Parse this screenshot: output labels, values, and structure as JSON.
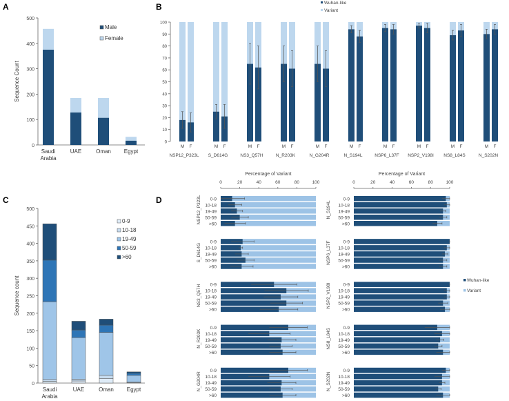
{
  "colors": {
    "dark": "#1f4e79",
    "light": "#bdd7ee",
    "variant_d": "#9dc3e6",
    "axis": "#666666",
    "err": "#555555"
  },
  "chart_data": [
    {
      "panel": "A",
      "type": "bar",
      "stacked": true,
      "ylabel": "Sequence Count",
      "ylim": [
        0,
        500
      ],
      "yticks": [
        "0",
        "100",
        "200",
        "300",
        "400",
        "500"
      ],
      "categories": [
        "Saudi Arabia",
        "UAE",
        "Oman",
        "Egypt"
      ],
      "category_lines": [
        [
          "Saudi",
          "Arabia"
        ],
        [
          "UAE"
        ],
        [
          "Oman"
        ],
        [
          "Egypt"
        ]
      ],
      "series": [
        {
          "name": "Male",
          "color": "#1f4e79",
          "values": [
            375,
            128,
            107,
            17
          ]
        },
        {
          "name": "Female",
          "color": "#bdd7ee",
          "values": [
            82,
            57,
            78,
            15
          ]
        }
      ],
      "legend": "top-right"
    },
    {
      "panel": "B",
      "type": "bar",
      "stacked": true,
      "unit": "percent",
      "ylim": [
        0,
        100
      ],
      "yticks": [
        "0",
        "10",
        "20",
        "30",
        "40",
        "50",
        "60",
        "70",
        "80",
        "90",
        "100"
      ],
      "sex_labels": [
        "M",
        "F"
      ],
      "legend_entries": [
        {
          "name": "Wuhan-like",
          "color": "#1f4e79"
        },
        {
          "name": "Variant",
          "color": "#bdd7ee"
        }
      ],
      "legend": "top-center",
      "groups": [
        {
          "name": "NSP12_P323L",
          "wuhan": [
            18,
            16
          ],
          "err": [
            7,
            8
          ]
        },
        {
          "name": "S_D614G",
          "wuhan": [
            25,
            21
          ],
          "err": [
            6,
            10
          ]
        },
        {
          "name": "NS3_Q57H",
          "wuhan": [
            65,
            62
          ],
          "err": [
            17,
            18
          ]
        },
        {
          "name": "N_R203K",
          "wuhan": [
            65,
            61
          ],
          "err": [
            15,
            15
          ]
        },
        {
          "name": "N_G204R",
          "wuhan": [
            65,
            61
          ],
          "err": [
            15,
            15
          ]
        },
        {
          "name": "N_S194L",
          "wuhan": [
            94,
            88
          ],
          "err": [
            3,
            5
          ]
        },
        {
          "name": "NSP6_L37F",
          "wuhan": [
            95,
            94
          ],
          "err": [
            3,
            4
          ]
        },
        {
          "name": "NSP2_V198I",
          "wuhan": [
            97,
            95
          ],
          "err": [
            2,
            4
          ]
        },
        {
          "name": "NS8_L84S",
          "wuhan": [
            89,
            93
          ],
          "err": [
            4,
            5
          ]
        },
        {
          "name": "N_S202N",
          "wuhan": [
            90,
            94
          ],
          "err": [
            4,
            4
          ]
        }
      ]
    },
    {
      "panel": "C",
      "type": "bar",
      "stacked": true,
      "ylabel": "Sequence count",
      "ylim": [
        0,
        500
      ],
      "yticks": [
        "0",
        "50",
        "100",
        "150",
        "200",
        "250",
        "300",
        "350",
        "400",
        "450",
        "500"
      ],
      "categories": [
        "Saudi Arabia",
        "UAE",
        "Oman",
        "Egypt"
      ],
      "category_lines": [
        [
          "Saudi",
          "Arabia"
        ],
        [
          "UAE"
        ],
        [
          "Oman"
        ],
        [
          "Egypt"
        ]
      ],
      "series": [
        {
          "name": "0-9",
          "color": "#deebf7",
          "values": [
            5,
            6,
            13,
            1
          ]
        },
        {
          "name": "10-18",
          "color": "#c6dbef",
          "values": [
            5,
            5,
            9,
            2
          ]
        },
        {
          "name": "19-49",
          "color": "#9fc5e8",
          "values": [
            223,
            119,
            123,
            19
          ]
        },
        {
          "name": "50-59",
          "color": "#2e75b6",
          "values": [
            119,
            22,
            21,
            6
          ]
        },
        {
          "name": ">60",
          "color": "#1f4e79",
          "values": [
            104,
            25,
            17,
            4
          ]
        }
      ],
      "legend": "top-right"
    },
    {
      "panel": "D",
      "type": "bar",
      "orientation": "horizontal",
      "stacked": true,
      "xlabel": "Percentage of Variant",
      "xlim": [
        0,
        100
      ],
      "xticks": [
        "0",
        "20",
        "40",
        "60",
        "80",
        "100"
      ],
      "age_groups": [
        "0-9",
        "10-18",
        "19-49",
        "50-59",
        ">60"
      ],
      "legend_entries": [
        {
          "name": "Wuhan-like",
          "color": "#1f4e79"
        },
        {
          "name": "Variant",
          "color": "#9dc3e6"
        }
      ],
      "legend": "right",
      "columns": [
        [
          {
            "name": "NSP12_P323L",
            "wuhan": [
              12,
              15,
              17,
              20,
              15
            ],
            "err": [
              13,
              7,
              6,
              9,
              11
            ]
          },
          {
            "name": "S_D614G",
            "wuhan": [
              23,
              21,
              22,
              26,
              22
            ],
            "err": [
              12,
              2,
              7,
              9,
              12
            ]
          },
          {
            "name": "NS3_Q57H",
            "wuhan": [
              56,
              69,
              63,
              69,
              61
            ],
            "err": [
              24,
              23,
              18,
              17,
              20
            ]
          },
          {
            "name": "N_R203K",
            "wuhan": [
              71,
              51,
              64,
              63,
              65
            ],
            "err": [
              20,
              22,
              15,
              12,
              14
            ]
          },
          {
            "name": "N_G204R",
            "wuhan": [
              71,
              51,
              64,
              63,
              65
            ],
            "err": [
              20,
              22,
              15,
              12,
              14
            ]
          }
        ],
        [
          {
            "name": "N_S194L",
            "wuhan": [
              96,
              97,
              93,
              93,
              87
            ],
            "err": [
              4,
              3,
              3,
              4,
              5
            ]
          },
          {
            "name": "NSP6_L37F",
            "wuhan": [
              100,
              97,
              95,
              93,
              93
            ],
            "err": [
              0,
              3,
              3,
              4,
              4
            ]
          },
          {
            "name": "NSP2_V198I",
            "wuhan": [
              100,
              97,
              97,
              93,
              95
            ],
            "err": [
              0,
              3,
              3,
              5,
              5
            ]
          },
          {
            "name": "NS8_L84S",
            "wuhan": [
              87,
              92,
              90,
              88,
              93
            ],
            "err": [
              13,
              8,
              4,
              4,
              7
            ]
          },
          {
            "name": "N_S202N",
            "wuhan": [
              96,
              92,
              92,
              88,
              93
            ],
            "err": [
              4,
              8,
              3,
              3,
              7
            ]
          }
        ]
      ]
    }
  ],
  "panel_letters": [
    "A",
    "B",
    "C",
    "D"
  ]
}
